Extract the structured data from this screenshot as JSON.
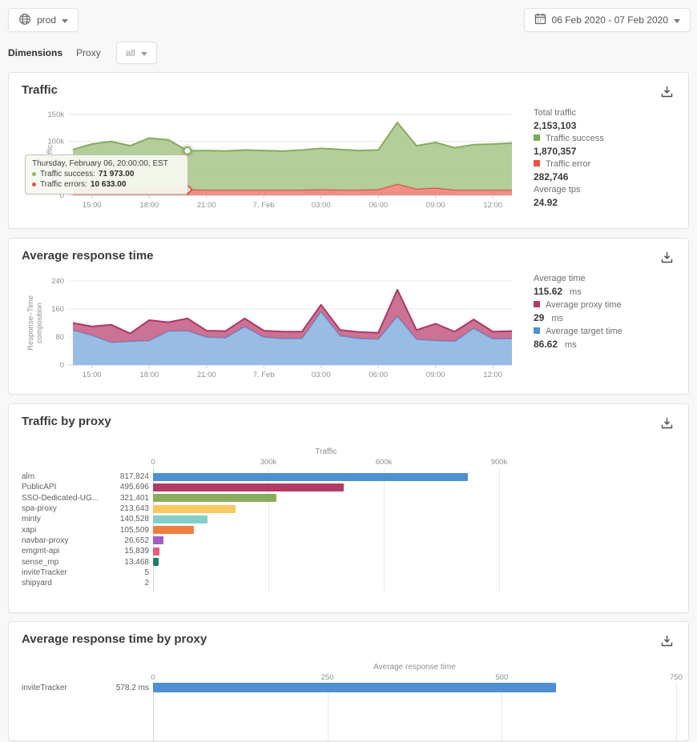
{
  "topbar": {
    "env_label": "prod",
    "date_range": "06 Feb 2020 - 07 Feb 2020"
  },
  "filters": {
    "dimensions_label": "Dimensions",
    "dimension_name": "Proxy",
    "dimension_value": "all"
  },
  "colors": {
    "traffic_success": "#79ab56",
    "traffic_error": "#e8544b",
    "proxy_time": "#b13a66",
    "target_time": "#4e90d2"
  },
  "traffic_card": {
    "title": "Traffic",
    "tooltip": {
      "title": "Thursday, February 06, 20:00:00, EST",
      "rows": [
        {
          "label": "Traffic success:",
          "value": "71 973.00",
          "dot": "#8db763"
        },
        {
          "label": "Traffic errors:",
          "value": "10 633.00",
          "dot": "#e8544b"
        }
      ]
    },
    "stats": {
      "total_label": "Total traffic",
      "total_value": "2,153,103",
      "success_label": "Traffic success",
      "success_value": "1,870,357",
      "error_label": "Traffic error",
      "error_value": "282,746",
      "tps_label": "Average tps",
      "tps_value": "24.92"
    }
  },
  "response_card": {
    "title": "Average response time",
    "stats": {
      "avg_label": "Average time",
      "avg_value": "115.62",
      "avg_unit": "ms",
      "proxy_label": "Average proxy time",
      "proxy_value": "29",
      "proxy_unit": "ms",
      "target_label": "Average target time",
      "target_value": "86.62",
      "target_unit": "ms"
    }
  },
  "traffic_by_proxy_card": {
    "title": "Traffic by proxy"
  },
  "response_by_proxy_card": {
    "title": "Average response time by proxy"
  },
  "chart_data": [
    {
      "id": "traffic",
      "type": "area",
      "title": "Traffic",
      "ylabel": "Traffic",
      "x_ticks": [
        "15:00",
        "18:00",
        "21:00",
        "7. Feb",
        "03:00",
        "06:00",
        "09:00",
        "12:00"
      ],
      "x_tick_indices": [
        1,
        4,
        7,
        10,
        13,
        16,
        19,
        22
      ],
      "y_ticks": [
        {
          "v": 0,
          "label": "0"
        },
        {
          "v": 50000,
          "label": "50k"
        },
        {
          "v": 100000,
          "label": "100k"
        },
        {
          "v": 150000,
          "label": "150k"
        }
      ],
      "ylim": [
        0,
        150000
      ],
      "stacked": true,
      "legend_position": "right",
      "grid": true,
      "marker_index": 6,
      "series": [
        {
          "name": "Traffic error",
          "line": "#e64c42",
          "fill": "#ee8078",
          "values": [
            11000,
            12000,
            11000,
            10000,
            11000,
            11000,
            10633,
            10000,
            10000,
            10000,
            10000,
            10000,
            10000,
            11000,
            10000,
            10000,
            11000,
            21000,
            12000,
            14000,
            10000,
            10000,
            10000,
            10000
          ]
        },
        {
          "name": "Traffic success",
          "line": "#88a95e",
          "fill": "#a9c78b",
          "values": [
            74000,
            83000,
            89000,
            82000,
            95000,
            92000,
            71973,
            73000,
            72000,
            74000,
            73000,
            72000,
            74000,
            76000,
            75000,
            73000,
            73000,
            114000,
            80000,
            84000,
            78000,
            84000,
            85000,
            87000
          ]
        }
      ]
    },
    {
      "id": "response",
      "type": "area",
      "title": "Average response time",
      "ylabel_lines": [
        "Response–Time",
        "composition"
      ],
      "x_ticks": [
        "15:00",
        "18:00",
        "21:00",
        "7. Feb",
        "03:00",
        "06:00",
        "09:00",
        "12:00"
      ],
      "x_tick_indices": [
        1,
        4,
        7,
        10,
        13,
        16,
        19,
        22
      ],
      "y_ticks": [
        {
          "v": 0,
          "label": "0"
        },
        {
          "v": 80,
          "label": "80"
        },
        {
          "v": 160,
          "label": "160"
        },
        {
          "v": 240,
          "label": "240"
        }
      ],
      "ylim": [
        0,
        240
      ],
      "stacked": true,
      "grid": true,
      "series": [
        {
          "name": "Average target time",
          "line": "#5f96d2",
          "fill": "#8bb3e1",
          "values": [
            100,
            85,
            65,
            68,
            70,
            97,
            98,
            80,
            78,
            110,
            80,
            76,
            76,
            153,
            84,
            76,
            74,
            140,
            74,
            70,
            68,
            105,
            75,
            76
          ]
        },
        {
          "name": "Average proxy time",
          "line": "#ad3766",
          "fill": "#c55f85",
          "values": [
            20,
            25,
            50,
            22,
            58,
            25,
            35,
            18,
            19,
            23,
            18,
            19,
            19,
            19,
            16,
            18,
            18,
            75,
            26,
            48,
            27,
            25,
            20,
            21
          ]
        }
      ]
    },
    {
      "id": "traffic_by_proxy",
      "type": "bar",
      "orientation": "horizontal",
      "xlabel": "Traffic",
      "x_ticks": [
        {
          "v": 0,
          "label": "0"
        },
        {
          "v": 300000,
          "label": "300k"
        },
        {
          "v": 600000,
          "label": "600k"
        },
        {
          "v": 900000,
          "label": "900k"
        }
      ],
      "xlim": [
        0,
        900000
      ],
      "grid": true,
      "categories": [
        "alm",
        "PublicAPI",
        "SSO-Dedicated-UG...",
        "spa-proxy",
        "minty",
        "xapi",
        "navbar-proxy",
        "emgmt-api",
        "sense_mp",
        "inviteTracker",
        "shipyard"
      ],
      "values": [
        817824,
        495696,
        321401,
        213643,
        140528,
        105509,
        26652,
        15839,
        13468,
        5,
        2
      ],
      "value_labels": [
        "817,824",
        "495,696",
        "321,401",
        "213,643",
        "140,528",
        "105,509",
        "26,652",
        "15,839",
        "13,468",
        "5",
        "2"
      ],
      "bar_colors": [
        "#4e90d2",
        "#b23b66",
        "#8bac5c",
        "#fbc75f",
        "#82cfc9",
        "#ec7f3e",
        "#a45cc4",
        "#ea5a80",
        "#1a7f66",
        "#4e90d2",
        "#b23b66"
      ]
    },
    {
      "id": "response_by_proxy",
      "type": "bar",
      "orientation": "horizontal",
      "xlabel": "Average response time",
      "x_ticks": [
        {
          "v": 0,
          "label": "0"
        },
        {
          "v": 250,
          "label": "250"
        },
        {
          "v": 500,
          "label": "500"
        },
        {
          "v": 750,
          "label": "750"
        }
      ],
      "xlim": [
        0,
        750
      ],
      "grid": true,
      "categories": [
        "inviteTracker"
      ],
      "values": [
        578.2
      ],
      "value_labels": [
        "578.2 ms"
      ],
      "bar_colors": [
        "#4e90d2"
      ]
    }
  ]
}
